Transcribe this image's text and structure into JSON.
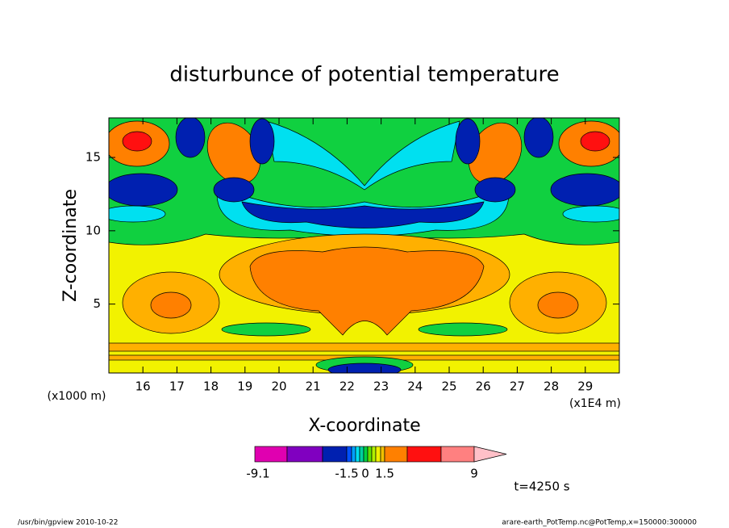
{
  "chart_data": {
    "type": "contour",
    "title": "disturbunce of potential temperature",
    "x_label": "X-coordinate",
    "y_label": "Z-coordinate",
    "x_unit_label": "(x1E4 m)",
    "y_unit_label": "(x1000 m)",
    "xlim": [
      15,
      30
    ],
    "xticks": [
      16,
      17,
      18,
      19,
      20,
      21,
      22,
      23,
      24,
      25,
      26,
      27,
      28,
      29
    ],
    "ylim": [
      0.3,
      17.7
    ],
    "yticks": [
      5,
      10,
      15
    ],
    "colorbar": {
      "colors": [
        "#e000b0",
        "#8000c0",
        "#0020b0",
        "#0050ff",
        "#00a0ff",
        "#00e0f0",
        "#00d0a0",
        "#00d040",
        "#60e000",
        "#b0f000",
        "#f0f000",
        "#f0c000",
        "#ff8000",
        "#ff1010",
        "#ff8080",
        "#ffc0c8"
      ],
      "ticks": [
        -9.1,
        -1.5,
        0,
        1.5,
        9
      ]
    },
    "annotation": "t=4250 s",
    "footer_left": "/usr/bin/gpview  2010-10-22",
    "footer_right": "arare-earth_PotTemp.nc@PotTemp,x=150000:300000"
  }
}
